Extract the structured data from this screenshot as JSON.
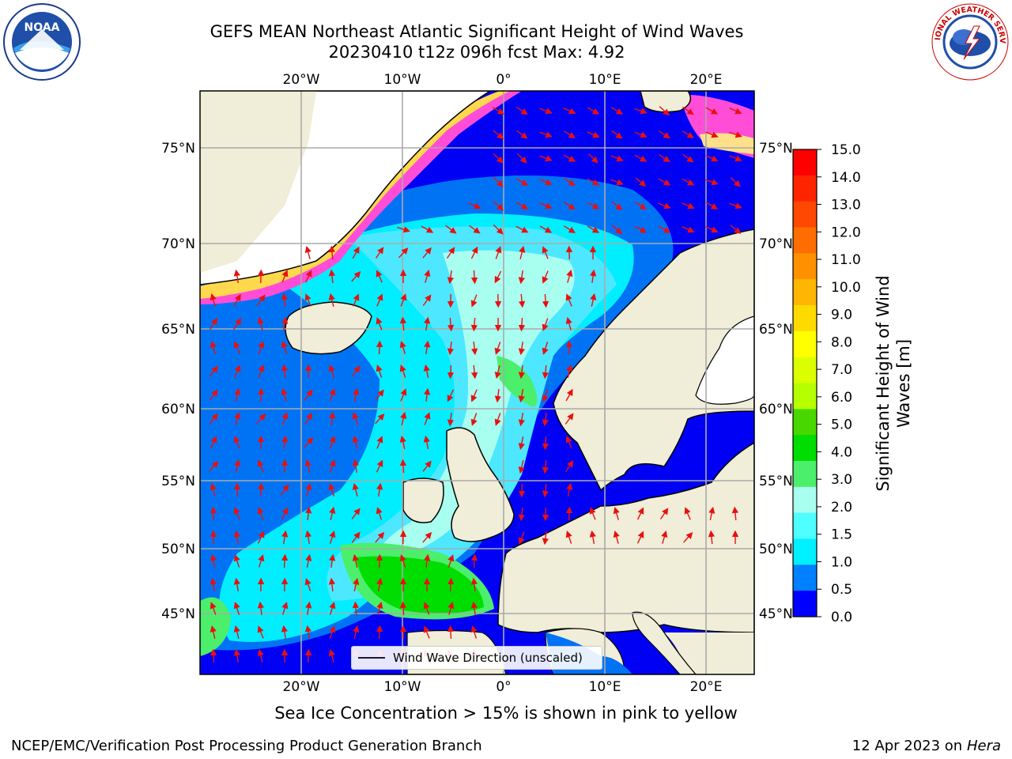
{
  "title": {
    "line1": "GEFS MEAN Northeast Atlantic Significant Height of Wind Waves",
    "line2": "20230410 t12z 096h fcst   Max: 4.92"
  },
  "logos": {
    "left": "NOAA",
    "right": "NATIONAL WEATHER SERVICE"
  },
  "axes": {
    "lon_ticks": [
      "20°W",
      "10°W",
      "0°",
      "10°E",
      "20°E"
    ],
    "lat_ticks": [
      "75°N",
      "70°N",
      "65°N",
      "60°N",
      "55°N",
      "50°N",
      "45°N"
    ]
  },
  "legend": {
    "label": "Wind Wave Direction (unscaled)"
  },
  "colorbar": {
    "label_line1": "Significant Height of Wind",
    "label_line2": "Waves [m]",
    "ticks": [
      "15.0",
      "14.0",
      "13.0",
      "12.0",
      "11.0",
      "10.0",
      "9.0",
      "8.0",
      "7.0",
      "6.0",
      "5.0",
      "4.0",
      "3.0",
      "2.0",
      "1.5",
      "1.0",
      "0.5",
      "0.0"
    ],
    "colors": [
      "#ff0000",
      "#ff2400",
      "#ff4800",
      "#ff6d00",
      "#ff9100",
      "#ffb600",
      "#ffda00",
      "#ffff00",
      "#dbff00",
      "#b6ff00",
      "#48d800",
      "#00dd00",
      "#4bef6b",
      "#a8fff0",
      "#4dffff",
      "#00f0ff",
      "#007fff",
      "#0000ff"
    ]
  },
  "sea_ice_note": "Sea Ice Concentration > 15% is shown in pink to yellow",
  "footer": {
    "left": "NCEP/EMC/Verification Post Processing Product Generation Branch",
    "date": "12 Apr 2023 on",
    "machine": "Hera"
  }
}
